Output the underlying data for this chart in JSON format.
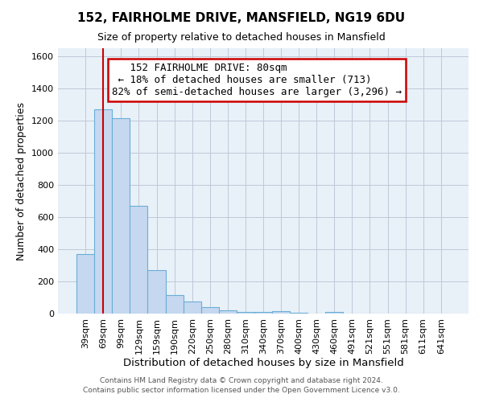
{
  "title": "152, FAIRHOLME DRIVE, MANSFIELD, NG19 6DU",
  "subtitle": "Size of property relative to detached houses in Mansfield",
  "xlabel": "Distribution of detached houses by size in Mansfield",
  "ylabel": "Number of detached properties",
  "bar_labels": [
    "39sqm",
    "69sqm",
    "99sqm",
    "129sqm",
    "159sqm",
    "190sqm",
    "220sqm",
    "250sqm",
    "280sqm",
    "310sqm",
    "340sqm",
    "370sqm",
    "400sqm",
    "430sqm",
    "460sqm",
    "491sqm",
    "521sqm",
    "551sqm",
    "581sqm",
    "611sqm",
    "641sqm"
  ],
  "bar_values": [
    370,
    1270,
    1215,
    670,
    270,
    115,
    75,
    38,
    20,
    12,
    8,
    15,
    3,
    0,
    12,
    0,
    0,
    0,
    0,
    0,
    0
  ],
  "bar_color": "#c5d8f0",
  "bar_edge_color": "#6aaed6",
  "property_line_x": 1.0,
  "property_line_color": "#cc0000",
  "ylim": [
    0,
    1650
  ],
  "yticks": [
    0,
    200,
    400,
    600,
    800,
    1000,
    1200,
    1400,
    1600
  ],
  "annotation_text": "   152 FAIRHOLME DRIVE: 80sqm\n ← 18% of detached houses are smaller (713)\n82% of semi-detached houses are larger (3,296) →",
  "annotation_box_color": "#cc0000",
  "footer1": "Contains HM Land Registry data © Crown copyright and database right 2024.",
  "footer2": "Contains public sector information licensed under the Open Government Licence v3.0.",
  "background_color": "#ffffff",
  "plot_bg_color": "#e8f0f8",
  "grid_color": "#c0c8d8"
}
